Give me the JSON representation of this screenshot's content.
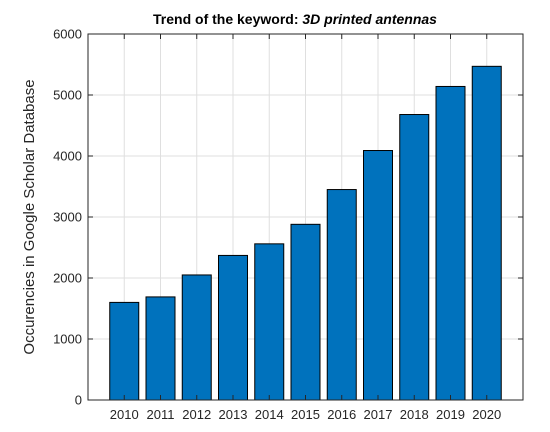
{
  "chart_data": {
    "type": "bar",
    "title_prefix": "Trend of the keyword: ",
    "title_keyword": "3D printed antennas",
    "xlabel": "",
    "ylabel": "Occurencies in Google Scholar Database",
    "categories": [
      "2010",
      "2011",
      "2012",
      "2013",
      "2014",
      "2015",
      "2016",
      "2017",
      "2018",
      "2019",
      "2020"
    ],
    "values": [
      1600,
      1690,
      2050,
      2370,
      2560,
      2880,
      3450,
      4090,
      4680,
      5140,
      5470
    ],
    "ylim": [
      0,
      6000
    ],
    "yticks": [
      0,
      1000,
      2000,
      3000,
      4000,
      5000,
      6000
    ],
    "grid": true,
    "colors": {
      "bar": "#0072BD",
      "bar_edge": "#000000",
      "grid": "#dfdfdf",
      "axis": "#262626"
    }
  }
}
